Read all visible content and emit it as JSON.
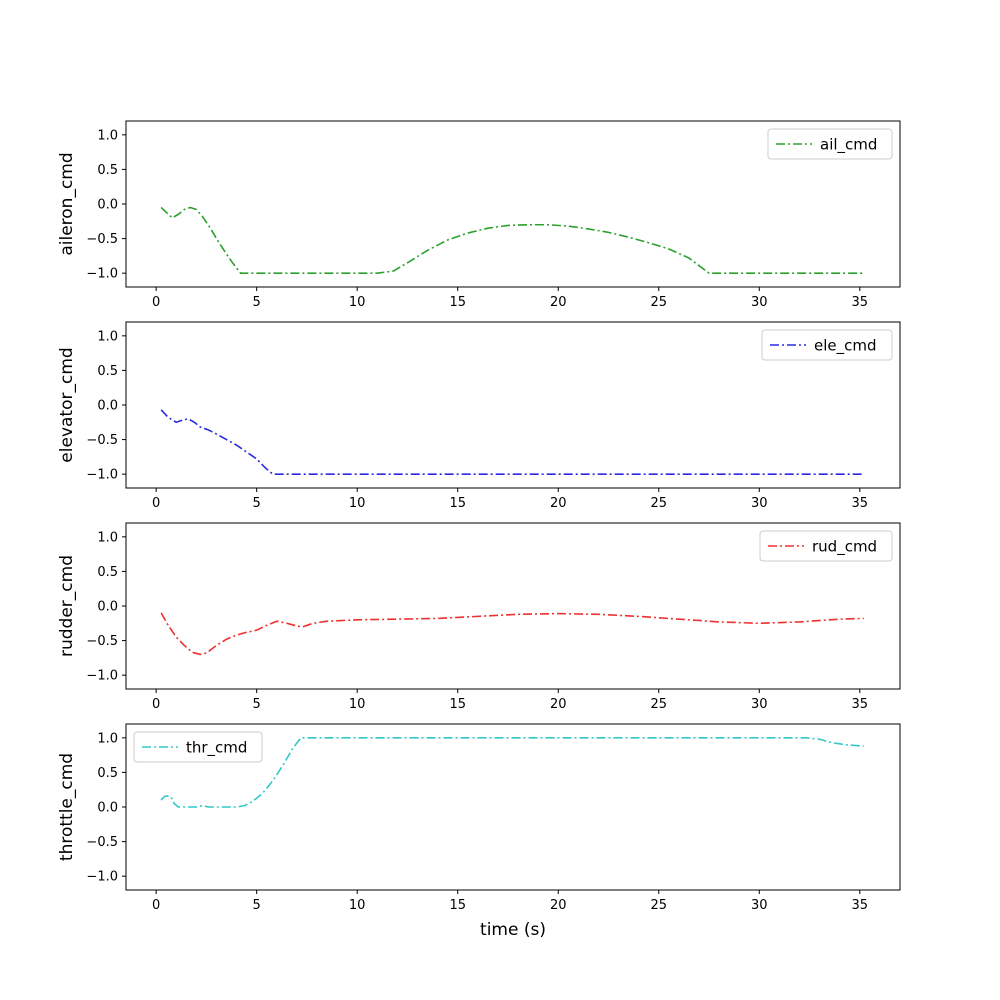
{
  "chart_data": [
    {
      "type": "line",
      "ylabel": "aileron_cmd",
      "xlabel": "",
      "xlim": [
        -1.5,
        37
      ],
      "ylim": [
        -1.2,
        1.2
      ],
      "xticks": [
        "0",
        "5",
        "10",
        "15",
        "20",
        "25",
        "30",
        "35"
      ],
      "yticks": [
        "1.0",
        "0.5",
        "0.0",
        "−0.5",
        "−1.0"
      ],
      "legend_position": "top-right",
      "series": [
        {
          "name": "ail_cmd",
          "color": "#2ca02c",
          "x": [
            0.25,
            0.5,
            0.8,
            1.1,
            1.4,
            1.7,
            2.0,
            2.3,
            2.7,
            3.0,
            3.4,
            3.8,
            4.2,
            5,
            7,
            9,
            11,
            11.8,
            12.5,
            13.5,
            14.5,
            15.5,
            16.5,
            17.5,
            18.5,
            19.5,
            20.5,
            21.5,
            22.5,
            23.5,
            24.5,
            25.5,
            26.5,
            27.5,
            29,
            31,
            33,
            35.2
          ],
          "y": [
            -0.05,
            -0.12,
            -0.2,
            -0.15,
            -0.08,
            -0.05,
            -0.08,
            -0.18,
            -0.35,
            -0.5,
            -0.68,
            -0.85,
            -1.0,
            -1.0,
            -1.0,
            -1.0,
            -1.0,
            -0.97,
            -0.85,
            -0.67,
            -0.52,
            -0.42,
            -0.35,
            -0.31,
            -0.3,
            -0.3,
            -0.32,
            -0.36,
            -0.41,
            -0.48,
            -0.56,
            -0.65,
            -0.78,
            -1.0,
            -1.0,
            -1.0,
            -1.0,
            -1.0
          ]
        }
      ]
    },
    {
      "type": "line",
      "ylabel": "elevator_cmd",
      "xlabel": "",
      "xlim": [
        -1.5,
        37
      ],
      "ylim": [
        -1.2,
        1.2
      ],
      "xticks": [
        "0",
        "5",
        "10",
        "15",
        "20",
        "25",
        "30",
        "35"
      ],
      "yticks": [
        "1.0",
        "0.5",
        "0.0",
        "−0.5",
        "−1.0"
      ],
      "legend_position": "top-right",
      "series": [
        {
          "name": "ele_cmd",
          "color": "#2a2ae0",
          "x": [
            0.25,
            0.6,
            1.0,
            1.3,
            1.6,
            1.9,
            2.2,
            2.6,
            3.0,
            3.5,
            4.0,
            4.5,
            5.0,
            5.4,
            5.8,
            7,
            10,
            15,
            20,
            25,
            30,
            35.2
          ],
          "y": [
            -0.07,
            -0.18,
            -0.25,
            -0.22,
            -0.2,
            -0.25,
            -0.32,
            -0.36,
            -0.42,
            -0.5,
            -0.58,
            -0.68,
            -0.78,
            -0.9,
            -1.0,
            -1.0,
            -1.0,
            -1.0,
            -1.0,
            -1.0,
            -1.0,
            -1.0
          ]
        }
      ]
    },
    {
      "type": "line",
      "ylabel": "rudder_cmd",
      "xlabel": "",
      "xlim": [
        -1.5,
        37
      ],
      "ylim": [
        -1.2,
        1.2
      ],
      "xticks": [
        "0",
        "5",
        "10",
        "15",
        "20",
        "25",
        "30",
        "35"
      ],
      "yticks": [
        "1.0",
        "0.5",
        "0.0",
        "−0.5",
        "−1.0"
      ],
      "legend_position": "top-right",
      "series": [
        {
          "name": "rud_cmd",
          "color": "#f03030",
          "x": [
            0.25,
            0.6,
            1.0,
            1.4,
            1.8,
            2.2,
            2.5,
            3.0,
            3.5,
            4.0,
            4.5,
            5.0,
            5.5,
            6.0,
            6.5,
            7.0,
            7.3,
            7.8,
            8.5,
            10,
            12,
            14,
            16,
            18,
            20,
            22,
            24,
            26,
            28,
            30,
            32,
            34,
            35.2
          ],
          "y": [
            -0.1,
            -0.28,
            -0.45,
            -0.57,
            -0.67,
            -0.7,
            -0.68,
            -0.57,
            -0.48,
            -0.42,
            -0.38,
            -0.35,
            -0.28,
            -0.22,
            -0.25,
            -0.29,
            -0.3,
            -0.25,
            -0.22,
            -0.2,
            -0.19,
            -0.18,
            -0.15,
            -0.12,
            -0.11,
            -0.12,
            -0.15,
            -0.19,
            -0.23,
            -0.25,
            -0.23,
            -0.19,
            -0.18
          ]
        }
      ]
    },
    {
      "type": "line",
      "ylabel": "throttle_cmd",
      "xlabel": "time (s)",
      "xlim": [
        -1.5,
        37
      ],
      "ylim": [
        -1.2,
        1.2
      ],
      "xticks": [
        "0",
        "5",
        "10",
        "15",
        "20",
        "25",
        "30",
        "35"
      ],
      "yticks": [
        "1.0",
        "0.5",
        "0.0",
        "−0.5",
        "−1.0"
      ],
      "legend_position": "top-left",
      "series": [
        {
          "name": "thr_cmd",
          "color": "#30c8c8",
          "x": [
            0.25,
            0.4,
            0.55,
            0.75,
            0.9,
            1.1,
            1.5,
            2.0,
            2.3,
            2.6,
            3.0,
            3.5,
            4.0,
            4.4,
            4.8,
            5.3,
            5.8,
            6.3,
            6.8,
            7.2,
            8,
            10,
            15,
            20,
            25,
            30,
            32.3,
            33,
            33.6,
            34.3,
            35.2
          ],
          "y": [
            0.1,
            0.15,
            0.16,
            0.14,
            0.05,
            0.0,
            0.0,
            0.0,
            0.02,
            0.0,
            0.0,
            0.0,
            0.0,
            0.02,
            0.08,
            0.2,
            0.38,
            0.6,
            0.85,
            1.0,
            1.0,
            1.0,
            1.0,
            1.0,
            1.0,
            1.0,
            1.0,
            0.98,
            0.93,
            0.9,
            0.88
          ]
        }
      ]
    }
  ]
}
